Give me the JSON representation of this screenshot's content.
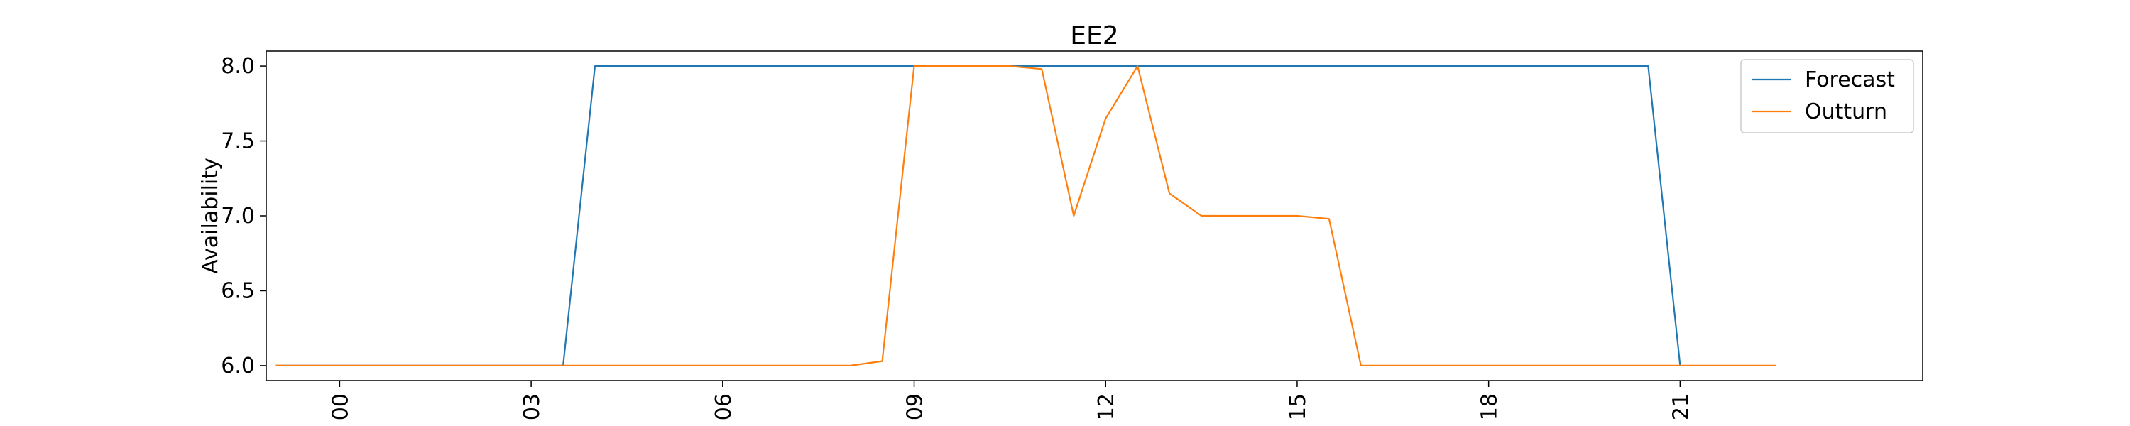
{
  "chart_data": {
    "type": "line",
    "title": "EE2",
    "xlabel": "",
    "ylabel": "Availability",
    "xlim": [
      -1.15,
      24.8
    ],
    "ylim": [
      5.9,
      8.1
    ],
    "yticks": [
      6.0,
      6.5,
      7.0,
      7.5,
      8.0
    ],
    "ytick_labels": [
      "6.0",
      "6.5",
      "7.0",
      "7.5",
      "8.0"
    ],
    "xticks": [
      0,
      3,
      6,
      9,
      12,
      15,
      18,
      21
    ],
    "xtick_labels": [
      "3 00",
      "3 03",
      "3 06",
      "3 09",
      "3 12",
      "3 15",
      "3 18",
      "3 21"
    ],
    "legend_position": "top-right",
    "series": [
      {
        "name": "Forecast",
        "color": "#1f77b4",
        "x": [
          -1,
          3.5,
          4,
          20.5,
          21
        ],
        "y": [
          6.0,
          6.0,
          8.0,
          8.0,
          6.0
        ]
      },
      {
        "name": "Outturn",
        "color": "#ff7f0e",
        "x": [
          -1,
          8,
          8.5,
          9,
          10.5,
          11,
          11.5,
          12,
          12.5,
          13,
          13.5,
          15,
          15.5,
          16,
          22.5
        ],
        "y": [
          6.0,
          6.0,
          6.03,
          8.0,
          8.0,
          7.98,
          7.0,
          7.65,
          8.0,
          7.15,
          7.0,
          7.0,
          6.98,
          6.0,
          6.0
        ]
      }
    ]
  }
}
